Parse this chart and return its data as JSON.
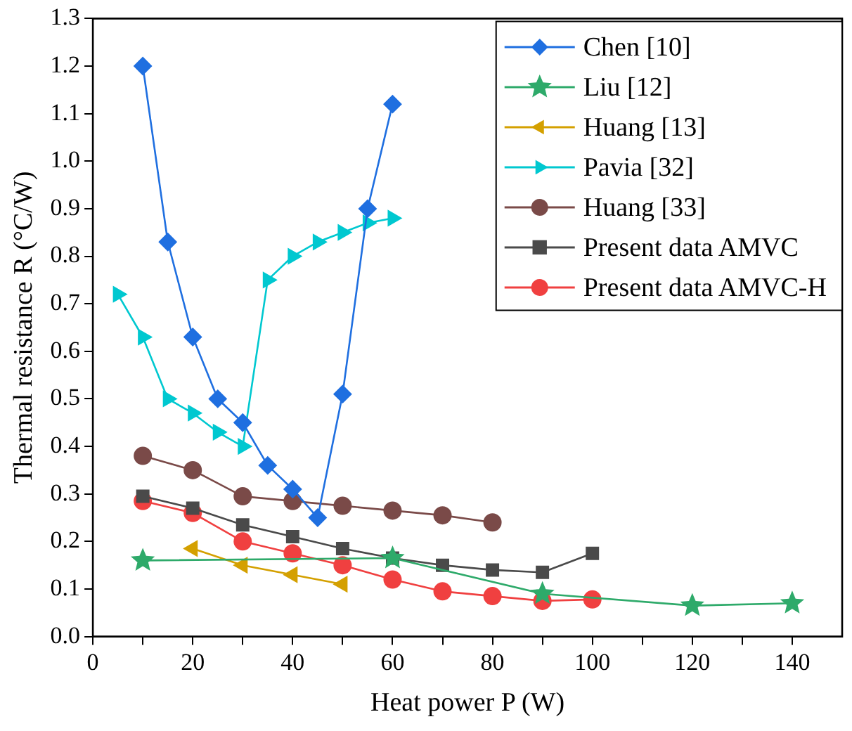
{
  "chart_data": {
    "type": "line",
    "xlabel": "Heat power P (W)",
    "ylabel": "Thermal resistance R (°C/W)",
    "xlim": [
      0,
      150
    ],
    "xticks": [
      0,
      {
        "value": 10,
        "label": null
      },
      20,
      {
        "value": 30,
        "label": null
      },
      40,
      {
        "value": 50,
        "label": null
      },
      60,
      {
        "value": 70,
        "label": null
      },
      80,
      {
        "value": 90,
        "label": null
      },
      100,
      {
        "value": 110,
        "label": null
      },
      120,
      {
        "value": 130,
        "label": null
      },
      140
    ],
    "ylim": [
      0,
      1.3
    ],
    "yticks": [
      {
        "value": 0,
        "label": "0.0"
      },
      0.1,
      0.2,
      0.3,
      0.4,
      0.5,
      0.6,
      0.7,
      0.8,
      0.9,
      {
        "value": 1,
        "label": "1.0"
      },
      1.1,
      1.2,
      1.3
    ],
    "grid": false,
    "legend": "top right",
    "line_style": "solid",
    "series": [
      {
        "name": "Chen [10]",
        "color": "#1f6fe0",
        "marker": "diamond",
        "x": [
          10,
          15,
          20,
          25,
          30,
          35,
          40,
          45,
          50,
          55,
          60
        ],
        "values": [
          1.2,
          0.83,
          0.63,
          0.5,
          0.45,
          0.36,
          0.31,
          0.25,
          0.51,
          0.9,
          1.12
        ]
      },
      {
        "name": "Liu [12]",
        "color": "#2eaa6a",
        "marker": "star",
        "x": [
          10,
          60,
          90,
          120,
          140
        ],
        "values": [
          0.16,
          0.165,
          0.09,
          0.065,
          0.07
        ]
      },
      {
        "name": "Huang [13]",
        "color": "#d4a000",
        "marker": "triangle-left",
        "x": [
          20,
          30,
          40,
          50
        ],
        "values": [
          0.185,
          0.15,
          0.13,
          0.11
        ]
      },
      {
        "name": "Pavia [32]",
        "color": "#00c8d0",
        "marker": "triangle-right",
        "x": [
          5,
          10,
          15,
          20,
          25,
          30,
          35,
          40,
          45,
          50,
          55,
          60
        ],
        "values": [
          0.72,
          0.63,
          0.5,
          0.47,
          0.43,
          0.4,
          0.75,
          0.8,
          0.83,
          0.85,
          0.87,
          0.88
        ]
      },
      {
        "name": "Huang [33]",
        "color": "#7a4a48",
        "marker": "circle",
        "x": [
          10,
          20,
          30,
          40,
          50,
          60,
          70,
          80
        ],
        "values": [
          0.38,
          0.35,
          0.295,
          0.285,
          0.275,
          0.265,
          0.255,
          0.24
        ]
      },
      {
        "name": "Present data AMVC",
        "color": "#4a4a4a",
        "marker": "square",
        "x": [
          10,
          20,
          30,
          40,
          50,
          60,
          70,
          80,
          90,
          100
        ],
        "values": [
          0.295,
          0.27,
          0.235,
          0.21,
          0.185,
          0.165,
          0.15,
          0.14,
          0.135,
          0.175
        ]
      },
      {
        "name": "Present data AMVC-H",
        "color": "#f04040",
        "marker": "circle",
        "x": [
          10,
          20,
          30,
          40,
          50,
          60,
          70,
          80,
          90,
          100
        ],
        "values": [
          0.285,
          0.26,
          0.2,
          0.175,
          0.15,
          0.12,
          0.095,
          0.085,
          0.075,
          0.078
        ]
      }
    ]
  }
}
